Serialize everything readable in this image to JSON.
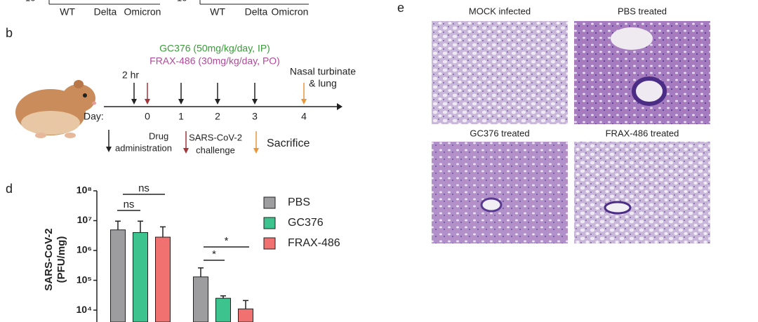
{
  "top_panel": {
    "cut_labels": [
      "10",
      "10"
    ],
    "groups": [
      [
        "WT",
        "Delta",
        "Omicron"
      ],
      [
        "WT",
        "Delta",
        "Omicron"
      ]
    ]
  },
  "panel_b": {
    "label": "b",
    "drug1": "GC376 (50mg/kg/day, IP)",
    "drug2": "FRAX-486 (30mg/kg/day, PO)",
    "time_note": "2 hr",
    "endpoint": [
      "Nasal turbinate",
      "& lung"
    ],
    "axis_label": "Day:",
    "days": [
      0,
      1,
      2,
      3,
      4
    ],
    "legend": {
      "drug": [
        "Drug",
        "administration"
      ],
      "challenge": [
        "SARS-CoV-2",
        "challenge"
      ],
      "sacrifice": "Sacrifice"
    }
  },
  "chart_data": {
    "type": "bar",
    "panel_label": "d",
    "y_label": [
      "SARS-CoV-2",
      "(PFU/mg)"
    ],
    "categories": [
      null,
      null
    ],
    "series": [
      {
        "name": "PBS",
        "color": "#9d9d9f",
        "values": [
          4900000,
          130000
        ],
        "errors": [
          4700000,
          130000
        ]
      },
      {
        "name": "GC376",
        "color": "#3cc38e",
        "values": [
          4000000,
          25000
        ],
        "errors": [
          5600000,
          5000
        ]
      },
      {
        "name": "FRAX-486",
        "color": "#f0716f",
        "values": [
          2800000,
          11000
        ],
        "errors": [
          3400000,
          10000
        ]
      }
    ],
    "log_y": true,
    "ylim": [
      4000,
      100000000
    ],
    "yticks": [
      {
        "value": 100000000,
        "label": "10⁸"
      },
      {
        "value": 10000000,
        "label": "10⁷"
      },
      {
        "value": 1000000,
        "label": "10⁶"
      },
      {
        "value": 100000,
        "label": "10⁵"
      },
      {
        "value": 10000,
        "label": "10⁴"
      }
    ],
    "annotations": [
      "ns",
      "ns",
      "*",
      "*"
    ]
  },
  "panel_e": {
    "label": "e",
    "images": [
      "MOCK infected",
      "PBS treated",
      "GC376 treated",
      "FRAX-486 treated"
    ]
  }
}
